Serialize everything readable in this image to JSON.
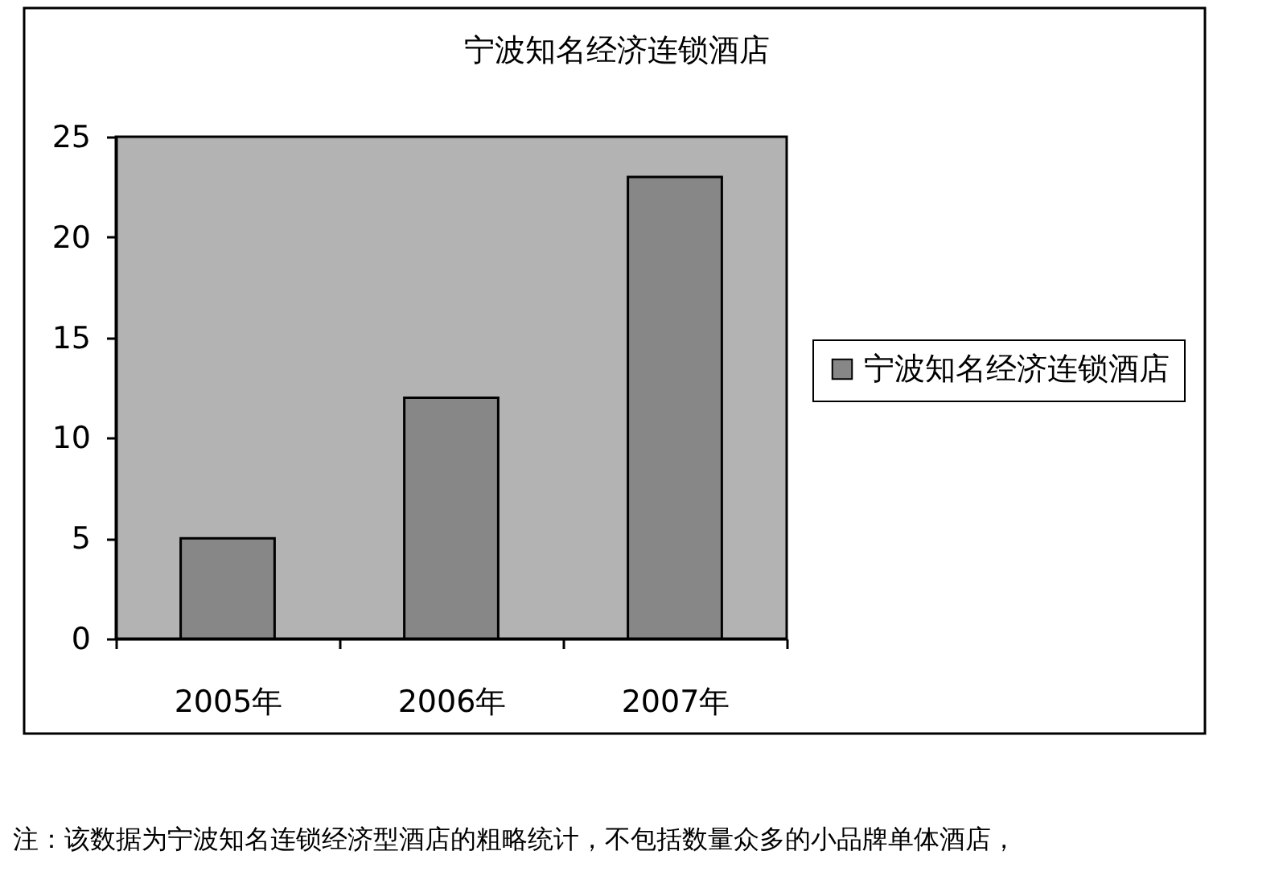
{
  "chart_data": {
    "type": "bar",
    "title": "宁波知名经济连锁酒店",
    "categories": [
      "2005年",
      "2006年",
      "2007年"
    ],
    "series": [
      {
        "name": "宁波知名经济连锁酒店",
        "color": "#878787",
        "values": [
          5,
          12,
          23
        ]
      }
    ],
    "ylim": [
      0,
      25
    ],
    "yticks": [
      0,
      5,
      10,
      15,
      20,
      25
    ],
    "legend": "right",
    "annotations": [
      "注：该数据为宁波知名连锁经济型酒店的粗略统计，不包括数量众多的小品牌单体酒店，"
    ]
  }
}
